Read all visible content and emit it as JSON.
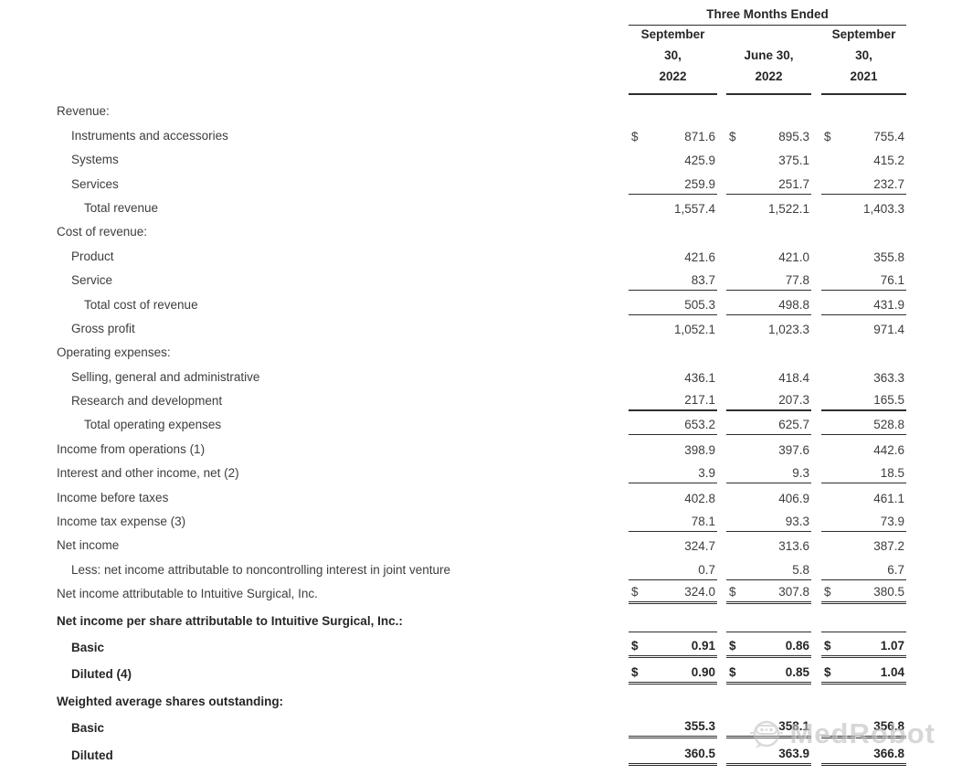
{
  "table": {
    "period_header": "Three Months Ended",
    "currency_symbol": "$",
    "columns": [
      {
        "lines": [
          "September",
          "30,",
          "2022"
        ]
      },
      {
        "lines": [
          "June 30,",
          "2022"
        ]
      },
      {
        "lines": [
          "September",
          "30,",
          "2021"
        ]
      }
    ],
    "rows": [
      {
        "label": "Revenue:",
        "indent": 0,
        "values": null
      },
      {
        "label": "Instruments and accessories",
        "indent": 1,
        "dollar": true,
        "values": [
          "871.6",
          "895.3",
          "755.4"
        ]
      },
      {
        "label": "Systems",
        "indent": 1,
        "values": [
          "425.9",
          "375.1",
          "415.2"
        ]
      },
      {
        "label": "Services",
        "indent": 1,
        "values": [
          "259.9",
          "251.7",
          "232.7"
        ],
        "underline": "single"
      },
      {
        "label": "Total revenue",
        "indent": 2,
        "values": [
          "1,557.4",
          "1,522.1",
          "1,403.3"
        ]
      },
      {
        "label": "Cost of revenue:",
        "indent": 0,
        "values": null
      },
      {
        "label": "Product",
        "indent": 1,
        "values": [
          "421.6",
          "421.0",
          "355.8"
        ]
      },
      {
        "label": "Service",
        "indent": 1,
        "values": [
          "83.7",
          "77.8",
          "76.1"
        ],
        "underline": "single"
      },
      {
        "label": "Total cost of revenue",
        "indent": 2,
        "values": [
          "505.3",
          "498.8",
          "431.9"
        ],
        "underline": "single"
      },
      {
        "label": "Gross profit",
        "indent": 1,
        "values": [
          "1,052.1",
          "1,023.3",
          "971.4"
        ]
      },
      {
        "label": "Operating expenses:",
        "indent": 0,
        "values": null
      },
      {
        "label": "Selling, general and administrative",
        "indent": 1,
        "values": [
          "436.1",
          "418.4",
          "363.3"
        ]
      },
      {
        "label": "Research and development",
        "indent": 1,
        "values": [
          "217.1",
          "207.3",
          "165.5"
        ],
        "underline": "single-thick"
      },
      {
        "label": "Total operating expenses",
        "indent": 2,
        "values": [
          "653.2",
          "625.7",
          "528.8"
        ],
        "underline": "single"
      },
      {
        "label": "Income from operations (1)",
        "indent": 0,
        "values": [
          "398.9",
          "397.6",
          "442.6"
        ]
      },
      {
        "label": "Interest and other income, net (2)",
        "indent": 0,
        "values": [
          "3.9",
          "9.3",
          "18.5"
        ],
        "underline": "single"
      },
      {
        "label": "Income before taxes",
        "indent": 0,
        "values": [
          "402.8",
          "406.9",
          "461.1"
        ]
      },
      {
        "label": "Income tax expense (3)",
        "indent": 0,
        "values": [
          "78.1",
          "93.3",
          "73.9"
        ],
        "underline": "single"
      },
      {
        "label": "Net income",
        "indent": 0,
        "values": [
          "324.7",
          "313.6",
          "387.2"
        ]
      },
      {
        "label": "Less: net income attributable to noncontrolling interest in joint venture",
        "indent": 1,
        "values": [
          "0.7",
          "5.8",
          "6.7"
        ],
        "underline": "single"
      },
      {
        "label": "Net income attributable to Intuitive Surgical, Inc.",
        "indent": 0,
        "dollar": true,
        "values": [
          "324.0",
          "307.8",
          "380.5"
        ],
        "underline": "double"
      },
      {
        "label": "Net income per share attributable to Intuitive Surgical, Inc.:",
        "indent": 0,
        "bold": true,
        "tall": true,
        "values": null
      },
      {
        "label": "Basic",
        "indent": 1,
        "bold": true,
        "tall": true,
        "dollar": true,
        "values": [
          "0.91",
          "0.86",
          "1.07"
        ],
        "underline": "double",
        "overline": true
      },
      {
        "label": "Diluted (4)",
        "indent": 1,
        "bold": true,
        "tall": true,
        "dollar": true,
        "values": [
          "0.90",
          "0.85",
          "1.04"
        ],
        "underline": "double"
      },
      {
        "label": "Weighted average shares outstanding:",
        "indent": 0,
        "bold": true,
        "tall": true,
        "values": null
      },
      {
        "label": "Basic",
        "indent": 1,
        "bold": true,
        "tall": true,
        "values": [
          "355.3",
          "358.1",
          "356.8"
        ],
        "underline": "double"
      },
      {
        "label": "Diluted",
        "indent": 1,
        "bold": true,
        "tall": true,
        "values": [
          "360.5",
          "363.9",
          "366.8"
        ],
        "underline": "double"
      }
    ]
  },
  "watermark": {
    "text": "MedRobot"
  }
}
